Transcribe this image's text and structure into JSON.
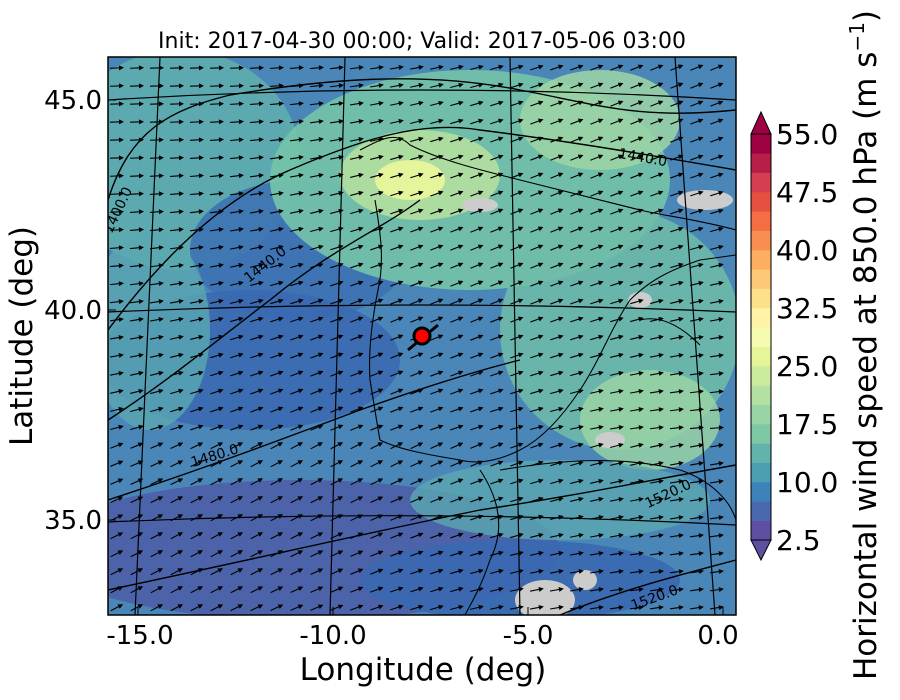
{
  "chart_data": {
    "type": "heatmap",
    "title": "Init: 2017-04-30 00:00; Valid: 2017-05-06 03:00",
    "xlabel": "Longitude (deg)",
    "ylabel": "Latitude (deg)",
    "xlim": [
      -15.8,
      0.2
    ],
    "ylim": [
      32.6,
      46.2
    ],
    "x_ticks": [
      -15.0,
      -10.0,
      -5.0,
      0.0
    ],
    "x_tick_labels": [
      "-15.0",
      "-10.0",
      "-5.0",
      "0.0"
    ],
    "y_ticks": [
      35.0,
      40.0,
      45.0
    ],
    "y_tick_labels": [
      "35.0",
      "40.0",
      "45.0"
    ],
    "colorbar": {
      "label": "Horizontal wind speed at 850.0 hPa (m s",
      "label_sup": "−1",
      "label_end": ")",
      "min": 2.5,
      "max": 55.0,
      "step": 2.5,
      "extend": "both",
      "ticks": [
        2.5,
        10.0,
        17.5,
        25.0,
        32.5,
        40.0,
        47.5,
        55.0
      ],
      "tick_labels": [
        "2.5",
        "10.0",
        "17.5",
        "25.0",
        "32.5",
        "40.0",
        "47.5",
        "55.0"
      ],
      "colormap": "Spectral_r"
    },
    "contour_labels": [
      {
        "text": "1400.0",
        "lon": -15.0,
        "lat": 42.2,
        "angle": -65
      },
      {
        "text": "1440.0",
        "lon": -12.0,
        "lat": 40.9,
        "angle": -38
      },
      {
        "text": "1440.0",
        "lon": -2.4,
        "lat": 43.7,
        "angle": 10
      },
      {
        "text": "1480.0",
        "lon": -12.8,
        "lat": 36.3,
        "angle": -17
      },
      {
        "text": "1520.0",
        "lon": -1.6,
        "lat": 35.6,
        "angle": -25
      },
      {
        "text": "1520.0",
        "lon": -2.3,
        "lat": 33.0,
        "angle": -20
      }
    ],
    "marker": {
      "lon": -7.6,
      "lat": 39.4,
      "color": "#ff0000"
    },
    "missing_color": "#cccccc"
  }
}
